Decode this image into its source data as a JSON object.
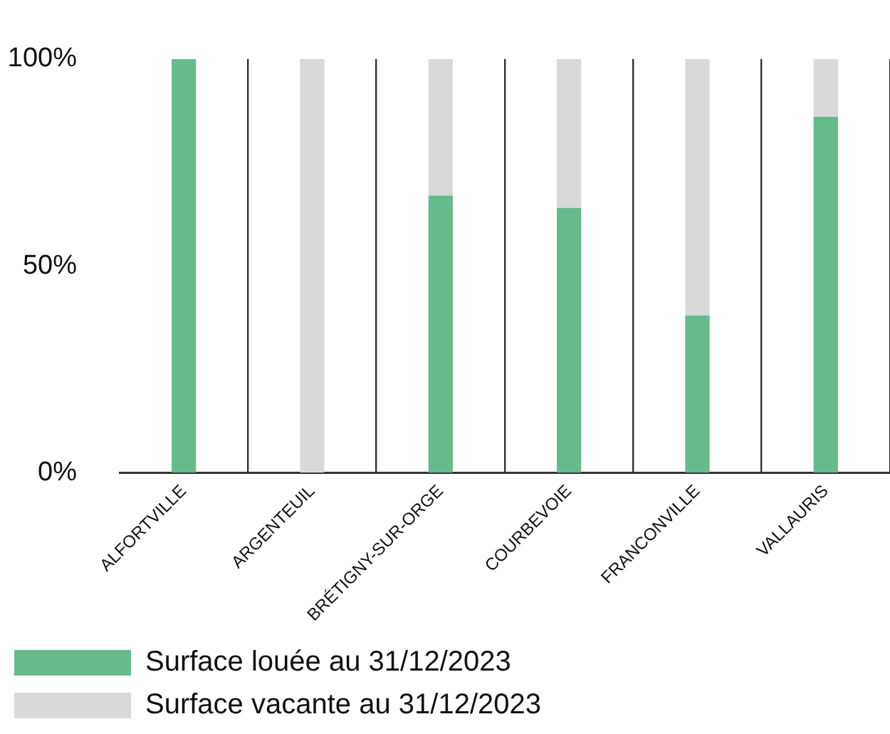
{
  "chart_data": {
    "type": "bar",
    "stacked": true,
    "categories": [
      "ALFORTVILLE",
      "ARGENTEUIL",
      "BRÉTIGNY-SUR-ORGE",
      "COURBEVOIE",
      "FRANCONVILLE",
      "VALLAURIS"
    ],
    "series": [
      {
        "name": "Surface louée au 31/12/2023",
        "color": "#66bb8d",
        "values": [
          100,
          0,
          67,
          64,
          38,
          86
        ]
      },
      {
        "name": "Surface vacante au 31/12/2023",
        "color": "#d9d9d9",
        "values": [
          0,
          100,
          33,
          36,
          62,
          14
        ]
      }
    ],
    "ylim": [
      0,
      100
    ],
    "yticks": [
      {
        "value": 0,
        "label": "0%"
      },
      {
        "value": 50,
        "label": "50%"
      },
      {
        "value": 100,
        "label": "100%"
      }
    ],
    "grid": "x",
    "legend": "bottom"
  }
}
